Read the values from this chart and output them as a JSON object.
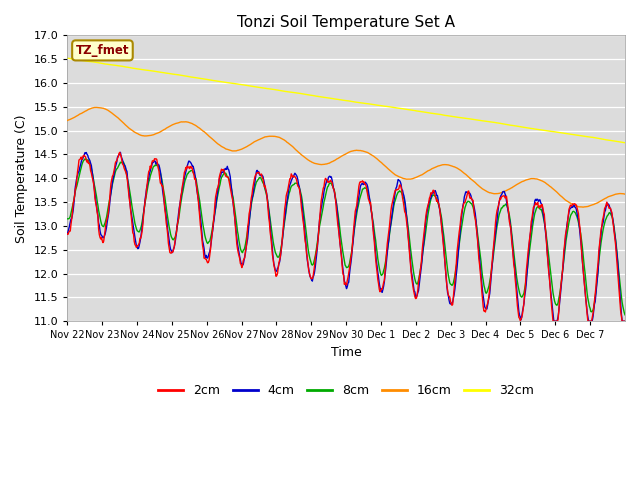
{
  "title": "Tonzi Soil Temperature Set A",
  "xlabel": "Time",
  "ylabel": "Soil Temperature (C)",
  "annotation": "TZ_fmet",
  "annotation_color": "#8B0000",
  "annotation_bg": "#FFFFCC",
  "annotation_edge": "#AA8800",
  "ylim": [
    11.0,
    17.0
  ],
  "yticks": [
    11.0,
    11.5,
    12.0,
    12.5,
    13.0,
    13.5,
    14.0,
    14.5,
    15.0,
    15.5,
    16.0,
    16.5,
    17.0
  ],
  "xtick_labels": [
    "Nov 22",
    "Nov 23",
    "Nov 24",
    "Nov 25",
    "Nov 26",
    "Nov 27",
    "Nov 28",
    "Nov 29",
    "Nov 30",
    "Dec 1",
    "Dec 2",
    "Dec 3",
    "Dec 4",
    "Dec 5",
    "Dec 6",
    "Dec 7"
  ],
  "colors": {
    "2cm": "#FF0000",
    "4cm": "#0000CC",
    "8cm": "#00AA00",
    "16cm": "#FF8C00",
    "32cm": "#FFFF00"
  },
  "bg_color": "#DCDCDC",
  "fig_bg": "#FFFFFF"
}
